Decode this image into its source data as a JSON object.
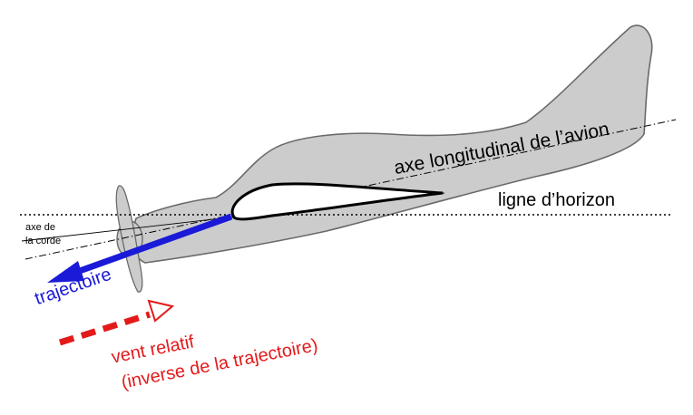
{
  "labels": {
    "longitudinal_axis": "axe longitudinal de l’avion",
    "horizon": "ligne d’horizon",
    "chord_axis_line1": "axe de",
    "chord_axis_line2": "la corde",
    "trajectory": "trajectoire",
    "wind_line1": "vent relatif",
    "wind_line2": "(inverse de la trajectoire)"
  },
  "colors": {
    "fuselage": "#cccccc",
    "outline": "#6a6a6a",
    "airfoil": "#000000",
    "trajectory": "#1a1ad8",
    "wind": "#e41a1a"
  }
}
